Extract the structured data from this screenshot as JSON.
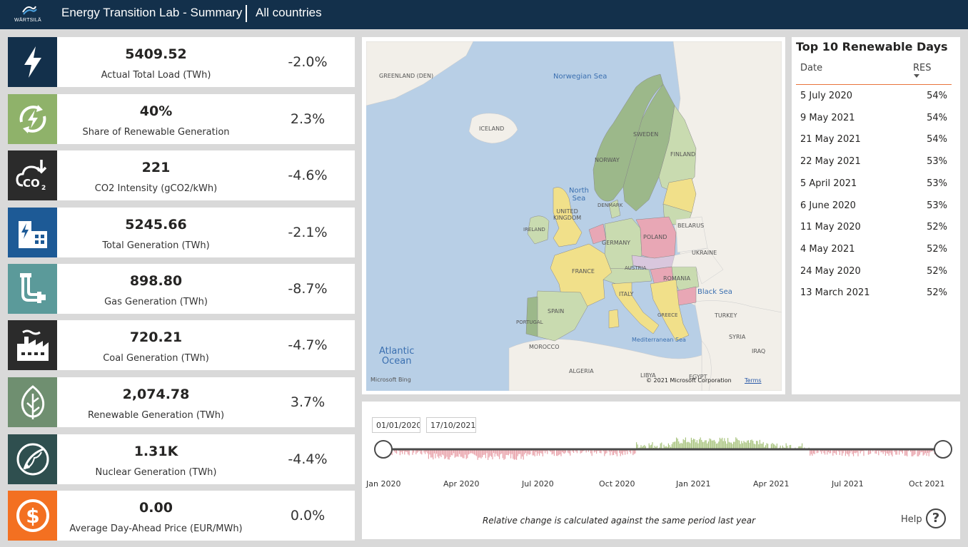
{
  "header": {
    "logo_text": "WÄRTSILÄ",
    "title": "Energy Transition Lab - Summary",
    "filter": "All countries"
  },
  "kpis": [
    {
      "value": "5409.52",
      "label": "Actual Total Load (TWh)",
      "change": "-2.0%",
      "icon": "lightning-icon",
      "color": "#13304b"
    },
    {
      "value": "40%",
      "label": "Share of Renewable Generation",
      "change": "2.3%",
      "icon": "renewable-lightning-icon",
      "color": "#8fb26a"
    },
    {
      "value": "221",
      "label": "CO2 Intensity (gCO2/kWh)",
      "change": "-4.6%",
      "icon": "co2-cloud-icon",
      "color": "#2b2b2b"
    },
    {
      "value": "5245.66",
      "label": "Total Generation (TWh)",
      "change": "-2.1%",
      "icon": "power-building-icon",
      "color": "#1d5a96"
    },
    {
      "value": "898.80",
      "label": "Gas Generation (TWh)",
      "change": "-8.7%",
      "icon": "gas-pipe-icon",
      "color": "#5b9a9a"
    },
    {
      "value": "720.21",
      "label": "Coal Generation (TWh)",
      "change": "-4.7%",
      "icon": "factory-icon",
      "color": "#2b2b2b"
    },
    {
      "value": "2,074.78",
      "label": "Renewable Generation (TWh)",
      "change": "3.7%",
      "icon": "leaf-icon",
      "color": "#6f8f70"
    },
    {
      "value": "1.31K",
      "label": "Nuclear Generation (TWh)",
      "change": "-4.4%",
      "icon": "nuclear-circle-icon",
      "color": "#2f4f4f"
    },
    {
      "value": "0.00",
      "label": "Average Day-Ahead Price (EUR/MWh)",
      "change": "0.0%",
      "icon": "dollar-coin-icon",
      "color": "#f37021"
    }
  ],
  "map": {
    "labels": {
      "greenland": "GREENLAND\n(DEN)",
      "iceland": "ICELAND",
      "norwegian_sea": "Norwegian Sea",
      "sweden": "SWEDEN",
      "norway": "NORWAY",
      "finland": "FINLAND",
      "north_sea": "North\nSea",
      "united_kingdom": "UNITED\nKINGDOM",
      "denmark": "DENMARK",
      "ireland": "IRELAND",
      "belarus": "BELARUS",
      "poland": "POLAND",
      "germany": "GERMANY",
      "ukraine": "UKRAINE",
      "france": "FRANCE",
      "austria": "AUSTRIA",
      "romania": "ROMANIA",
      "black_sea": "Black Sea",
      "italy": "ITALY",
      "spain": "SPAIN",
      "portugal": "PORTUGAL",
      "greece": "GREECE",
      "turkey": "TURKEY",
      "atlantic_ocean": "Atlantic\nOcean",
      "morocco": "MOROCCO",
      "mediterranean_sea": "Mediterranean Sea",
      "syria": "SYRIA",
      "iraq": "IRAQ",
      "algeria": "ALGERIA",
      "libya": "LIBYA",
      "egypt": "EGYPT"
    },
    "attribution": "Microsoft Bing",
    "copyright": "© 2021 Microsoft Corporation",
    "terms": "Terms",
    "colors": {
      "sea": "#b8cfe6",
      "land": "#f2efe9",
      "green_dark": "#9cb88a",
      "green_light": "#c9dbb0",
      "yellow": "#f1e08a",
      "pink": "#e8a7b5",
      "lavender": "#d9c7dd"
    }
  },
  "table": {
    "title": "Top 10 Renewable Days",
    "col_date": "Date",
    "col_res": "RES",
    "rows": [
      {
        "date": "5 July 2020",
        "res": "54%"
      },
      {
        "date": "9 May 2021",
        "res": "54%"
      },
      {
        "date": "21 May 2021",
        "res": "54%"
      },
      {
        "date": "22 May 2021",
        "res": "53%"
      },
      {
        "date": "5 April 2021",
        "res": "53%"
      },
      {
        "date": "6 June 2020",
        "res": "53%"
      },
      {
        "date": "11 May 2020",
        "res": "52%"
      },
      {
        "date": "4 May 2021",
        "res": "52%"
      },
      {
        "date": "24 May 2020",
        "res": "52%"
      },
      {
        "date": "13 March 2021",
        "res": "52%"
      }
    ]
  },
  "timeline": {
    "start_date": "01/01/2020",
    "end_date": "17/10/2021",
    "ticks": [
      "Jan 2020",
      "Apr 2020",
      "Jul 2020",
      "Oct 2020",
      "Jan 2021",
      "Apr 2021",
      "Jul 2021",
      "Oct 2021"
    ],
    "note": "Relative change is calculated against the same period last year",
    "help": "Help",
    "help_symbol": "?",
    "colors": {
      "positive": "#a9c47f",
      "negative": "#e8a0a8",
      "track": "#4a4a4a"
    }
  }
}
